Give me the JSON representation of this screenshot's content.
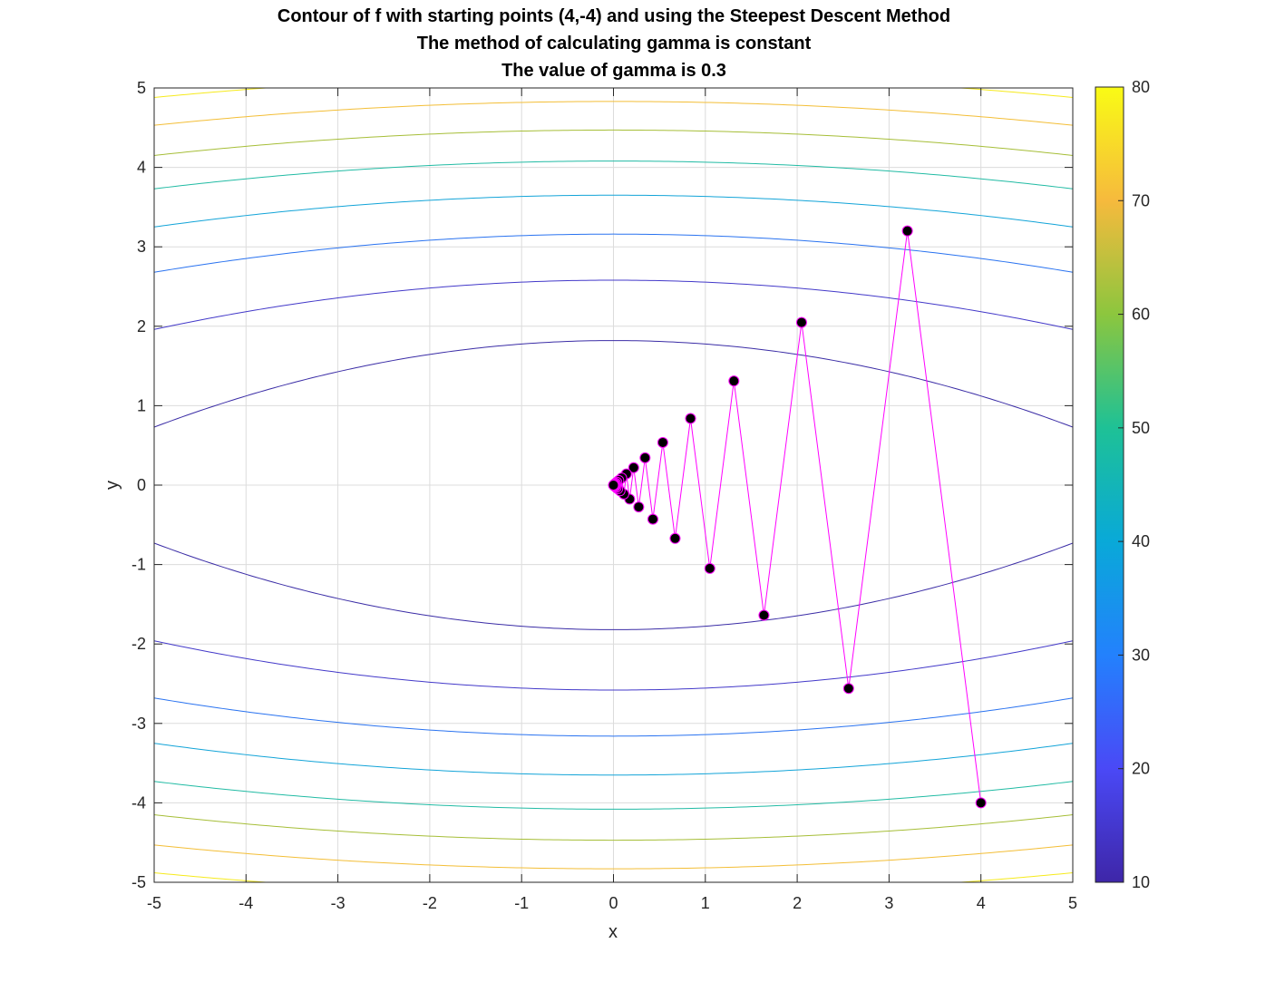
{
  "chart_data": {
    "type": "contour",
    "title": [
      "Contour of f with starting points (4,-4) and using the Steepest Descent Method",
      "The method of calculating gamma is constant",
      "The value of gamma is 0.3"
    ],
    "xlabel": "x",
    "ylabel": "y",
    "xlim": [
      -5,
      5
    ],
    "ylim": [
      -5,
      5
    ],
    "xticks": [
      "-5",
      "-4",
      "-3",
      "-2",
      "-1",
      "0",
      "1",
      "2",
      "3",
      "4",
      "5"
    ],
    "yticks": [
      "-5",
      "-4",
      "-3",
      "-2",
      "-1",
      "0",
      "1",
      "2",
      "3",
      "4",
      "5"
    ],
    "grid": true,
    "colorbar": {
      "position": "right",
      "ticks": [
        "10",
        "20",
        "30",
        "40",
        "50",
        "60",
        "70",
        "80"
      ],
      "range": [
        10,
        80
      ],
      "colormap": [
        "#3e26a8",
        "#4a49f6",
        "#2381fd",
        "#09a9d8",
        "#1ec196",
        "#8cc63e",
        "#f6ba3d",
        "#f9fb15"
      ]
    },
    "contour_levels": [
      {
        "y_at_x0": 1.82,
        "y_at_edge": 0.73,
        "color": "#3b2da6"
      },
      {
        "y_at_x0": 2.58,
        "y_at_edge": 1.96,
        "color": "#4339c9"
      },
      {
        "y_at_x0": 3.16,
        "y_at_edge": 2.68,
        "color": "#2a73f0"
      },
      {
        "y_at_x0": 3.65,
        "y_at_edge": 3.25,
        "color": "#13a4d8"
      },
      {
        "y_at_x0": 4.08,
        "y_at_edge": 3.73,
        "color": "#22bba4"
      },
      {
        "y_at_x0": 4.47,
        "y_at_edge": 4.15,
        "color": "#a6be38"
      },
      {
        "y_at_x0": 4.83,
        "y_at_edge": 4.53,
        "color": "#f3be37"
      },
      {
        "y_at_x0": 5.16,
        "y_at_edge": 4.88,
        "color": "#f6ea1c"
      }
    ],
    "path": {
      "line_color": "#ff00ff",
      "marker_color": "#000000",
      "marker_edge": "#ff00ff",
      "points": [
        [
          4,
          -4
        ],
        [
          3.2,
          3.2
        ],
        [
          2.56,
          -2.56
        ],
        [
          2.048,
          2.048
        ],
        [
          1.638,
          -1.638
        ],
        [
          1.311,
          1.311
        ],
        [
          1.049,
          -1.049
        ],
        [
          0.839,
          0.839
        ],
        [
          0.671,
          -0.671
        ],
        [
          0.537,
          0.537
        ],
        [
          0.429,
          -0.429
        ],
        [
          0.344,
          0.344
        ],
        [
          0.275,
          -0.275
        ],
        [
          0.22,
          0.22
        ],
        [
          0.176,
          -0.176
        ],
        [
          0.141,
          0.141
        ],
        [
          0.113,
          -0.113
        ],
        [
          0.09,
          0.09
        ],
        [
          0.072,
          -0.072
        ],
        [
          0.058,
          0.058
        ],
        [
          0.046,
          -0.046
        ],
        [
          0.037,
          0.037
        ],
        [
          0.03,
          -0.03
        ],
        [
          0.024,
          0.024
        ],
        [
          0.019,
          -0.019
        ],
        [
          0.015,
          0.015
        ],
        [
          0.012,
          -0.012
        ],
        [
          0.01,
          0.01
        ],
        [
          0.008,
          -0.008
        ],
        [
          0.006,
          0.006
        ],
        [
          0.005,
          -0.005
        ],
        [
          0.0,
          0.0
        ]
      ]
    }
  }
}
